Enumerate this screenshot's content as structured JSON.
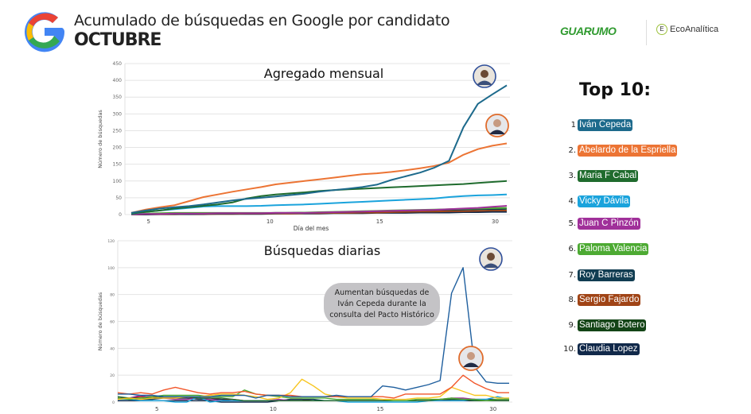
{
  "header": {
    "title": "Acumulado de búsquedas en Google por candidato",
    "subtitle": "OCTUBRE",
    "logo_guarumo": "GUARUMO",
    "logo_eco": "EcoAnalítica"
  },
  "legend": {
    "title": "Top 10:",
    "items": [
      {
        "num": "1",
        "name": "Iván Cepeda",
        "color": "#1d6a8c"
      },
      {
        "num": "2.",
        "name": "Abelardo de la Espriella",
        "color": "#ec7434"
      },
      {
        "num": "3.",
        "name": "Maria F Cabal",
        "color": "#1f6b2d"
      },
      {
        "num": "4.",
        "name": "Vicky Dávila",
        "color": "#1aa3dc"
      },
      {
        "num": "5.",
        "name": "Juan C Pinzón",
        "color": "#a0309a"
      },
      {
        "num": "6.",
        "name": "Paloma Valencia",
        "color": "#4daa33"
      },
      {
        "num": "7.",
        "name": "Roy Barreras",
        "color": "#113d52"
      },
      {
        "num": "8.",
        "name": "Sergio Fajardo",
        "color": "#a04416"
      },
      {
        "num": "9.",
        "name": "Santiago Botero",
        "color": "#134416"
      },
      {
        "num": "10.",
        "name": "Claudia Lopez",
        "color": "#11294a"
      }
    ]
  },
  "chart_data": [
    {
      "type": "line",
      "title": "Agregado mensual",
      "xlabel": "Día del mes",
      "ylabel": "Número de búsquedas",
      "ylim": [
        0,
        450
      ],
      "yticks": [
        0,
        50,
        100,
        150,
        200,
        250,
        300,
        350,
        400,
        450
      ],
      "xticks": [
        {
          "label": "5",
          "index": 1.2
        },
        {
          "label": "10",
          "index": 9.6
        },
        {
          "label": "15",
          "index": 17.2
        },
        {
          "label": "30",
          "index": 25.2
        }
      ],
      "grid": true,
      "series": [
        {
          "name": "Iván Cepeda",
          "color": "#1d6a8c",
          "values": [
            5,
            12,
            18,
            22,
            25,
            30,
            36,
            42,
            47,
            50,
            54,
            58,
            62,
            68,
            73,
            77,
            82,
            89,
            103,
            114,
            125,
            140,
            160,
            260,
            330,
            358,
            385
          ]
        },
        {
          "name": "Abelardo de la Espriella",
          "color": "#ec7434",
          "values": [
            5,
            15,
            22,
            28,
            40,
            52,
            60,
            68,
            75,
            82,
            90,
            95,
            100,
            105,
            110,
            115,
            120,
            123,
            127,
            132,
            138,
            145,
            155,
            178,
            195,
            205,
            212
          ]
        },
        {
          "name": "Maria F Cabal",
          "color": "#1f6b2d",
          "values": [
            3,
            8,
            12,
            18,
            22,
            26,
            30,
            36,
            48,
            55,
            60,
            63,
            66,
            70,
            73,
            75,
            77,
            79,
            81,
            83,
            85,
            87,
            89,
            91,
            94,
            97,
            100
          ]
        },
        {
          "name": "Vicky Dávila",
          "color": "#1aa3dc",
          "values": [
            2,
            8,
            12,
            16,
            20,
            24,
            25,
            25,
            25,
            26,
            28,
            29,
            30,
            32,
            34,
            36,
            38,
            40,
            42,
            44,
            46,
            48,
            52,
            55,
            57,
            58,
            60
          ]
        },
        {
          "name": "Juan C Pinzón",
          "color": "#a0309a",
          "values": [
            1,
            2,
            2,
            3,
            3,
            3,
            4,
            4,
            4,
            4,
            5,
            5,
            5,
            6,
            7,
            8,
            9,
            10,
            11,
            12,
            13,
            14,
            16,
            18,
            20,
            23,
            26
          ]
        },
        {
          "name": "Paloma Valencia",
          "color": "#4daa33",
          "values": [
            2,
            3,
            4,
            5,
            5,
            5,
            5,
            5,
            5,
            5,
            5,
            5,
            6,
            7,
            8,
            9,
            10,
            11,
            12,
            13,
            14,
            15,
            16,
            17,
            18,
            19,
            20
          ]
        },
        {
          "name": "Roy Barreras",
          "color": "#113d52",
          "values": [
            1,
            1,
            2,
            2,
            2,
            3,
            3,
            3,
            4,
            4,
            4,
            5,
            5,
            6,
            7,
            8,
            9,
            10,
            11,
            12,
            13,
            14,
            15,
            15,
            16,
            16,
            17
          ]
        },
        {
          "name": "Sergio Fajardo",
          "color": "#a04416",
          "values": [
            0,
            1,
            1,
            1,
            2,
            2,
            2,
            2,
            3,
            3,
            3,
            3,
            4,
            4,
            5,
            5,
            6,
            6,
            7,
            8,
            9,
            9,
            10,
            10,
            11,
            12,
            12
          ]
        },
        {
          "name": "Santiago Botero",
          "color": "#134416",
          "values": [
            1,
            1,
            2,
            2,
            3,
            3,
            3,
            4,
            4,
            4,
            5,
            5,
            6,
            6,
            7,
            8,
            8,
            9,
            10,
            11,
            12,
            13,
            14,
            15,
            16,
            17,
            18
          ]
        },
        {
          "name": "Claudia Lopez",
          "color": "#11294a",
          "values": [
            0,
            0,
            1,
            1,
            1,
            1,
            2,
            2,
            2,
            2,
            3,
            3,
            3,
            3,
            4,
            4,
            4,
            5,
            5,
            5,
            6,
            6,
            6,
            7,
            7,
            8,
            8
          ]
        }
      ]
    },
    {
      "type": "line",
      "title": "Búsquedas diarias",
      "ylabel": "Número de búsquedas",
      "ylim": [
        0,
        120
      ],
      "yticks": [
        0,
        20,
        40,
        60,
        80,
        100,
        120
      ],
      "xticks": [
        {
          "label": "5",
          "index": 3.4
        },
        {
          "label": "10",
          "index": 13.5
        },
        {
          "label": "15",
          "index": 22.8
        },
        {
          "label": "30",
          "index": 32.6
        }
      ],
      "grid": true,
      "annotation": "Aumentan búsquedas de Iván Cepeda durante la consulta del Pacto Histórico",
      "series": [
        {
          "name": "Iván Cepeda",
          "color": "#1f5f9e",
          "values": [
            6,
            6,
            5,
            5,
            4,
            4,
            4,
            4,
            4,
            5,
            5,
            5,
            3,
            5,
            5,
            4,
            4,
            4,
            4,
            5,
            4,
            4,
            4,
            12,
            11,
            9,
            11,
            13,
            16,
            81,
            100,
            26,
            15,
            14,
            14
          ]
        },
        {
          "name": "Abelardo de la Espriella",
          "color": "#f2562a",
          "values": [
            7,
            6,
            7,
            6,
            9,
            11,
            9,
            7,
            6,
            7,
            7,
            8,
            6,
            5,
            5,
            5,
            4,
            4,
            4,
            4,
            4,
            4,
            4,
            4,
            3,
            6,
            6,
            6,
            6,
            11,
            20,
            14,
            10,
            7,
            7
          ]
        },
        {
          "name": "",
          "color": "#f7c51e",
          "values": [
            2,
            3,
            2,
            3,
            3,
            3,
            4,
            4,
            5,
            6,
            6,
            5,
            4,
            2,
            3,
            7,
            17,
            12,
            6,
            4,
            3,
            3,
            3,
            2,
            2,
            2,
            3,
            3,
            4,
            11,
            8,
            5,
            5,
            3,
            3
          ]
        },
        {
          "name": "Paloma Valencia",
          "color": "#4daa33",
          "values": [
            3,
            2,
            3,
            4,
            5,
            5,
            5,
            5,
            4,
            4,
            4,
            9,
            6,
            5,
            4,
            3,
            3,
            3,
            3,
            2,
            2,
            2,
            2,
            2,
            1,
            1,
            2,
            2,
            2,
            3,
            2,
            2,
            1,
            2,
            2
          ]
        },
        {
          "name": "Maria F Cabal",
          "color": "#1f6b2d",
          "values": [
            4,
            3,
            3,
            3,
            4,
            4,
            4,
            3,
            3,
            3,
            2,
            1,
            1,
            1,
            1,
            1,
            1,
            1,
            1,
            1,
            1,
            1,
            1,
            1,
            1,
            1,
            1,
            1,
            2,
            2,
            2,
            1,
            1,
            1,
            1
          ]
        },
        {
          "name": "Vicky Dávila",
          "color": "#1aa3dc",
          "values": [
            2,
            2,
            1,
            1,
            1,
            0,
            0,
            4,
            0,
            1,
            1,
            1,
            1,
            1,
            1,
            1,
            1,
            1,
            1,
            1,
            0,
            0,
            0,
            0,
            0,
            0,
            0,
            1,
            1,
            1,
            1,
            2,
            2,
            4,
            2
          ]
        },
        {
          "name": "Juan C Pinzón",
          "color": "#a0309a",
          "values": [
            2,
            3,
            5,
            3,
            3,
            2,
            2,
            3,
            2,
            1,
            1,
            1,
            1,
            1,
            2,
            1,
            1,
            1,
            1,
            1,
            1,
            1,
            1,
            1,
            1,
            1,
            1,
            1,
            2,
            3,
            3,
            2,
            1,
            1,
            1
          ]
        },
        {
          "name": "Roy Barreras",
          "color": "#113d52",
          "values": [
            3,
            2,
            2,
            2,
            3,
            3,
            3,
            2,
            2,
            2,
            1,
            1,
            1,
            1,
            1,
            2,
            2,
            2,
            1,
            1,
            1,
            1,
            1,
            1,
            1,
            1,
            1,
            1,
            2,
            2,
            2,
            2,
            2,
            2,
            2
          ]
        },
        {
          "name": "Sergio Fajardo",
          "color": "#c2151f",
          "values": [
            3,
            3,
            4,
            4,
            3,
            3,
            3,
            3,
            3,
            2,
            2,
            1,
            1,
            1,
            1,
            2,
            2,
            1,
            1,
            1,
            1,
            1,
            1,
            1,
            1,
            1,
            1,
            1,
            1,
            2,
            2,
            2,
            1,
            1,
            1
          ]
        },
        {
          "name": "Claudia Lopez",
          "color": "#11294a",
          "values": [
            1,
            1,
            1,
            1,
            1,
            1,
            1,
            1,
            1,
            0,
            0,
            0,
            0,
            0,
            1,
            1,
            1,
            1,
            1,
            1,
            1,
            1,
            1,
            1,
            1,
            1,
            1,
            1,
            1,
            1,
            1,
            1,
            1,
            1,
            1
          ]
        }
      ]
    }
  ]
}
